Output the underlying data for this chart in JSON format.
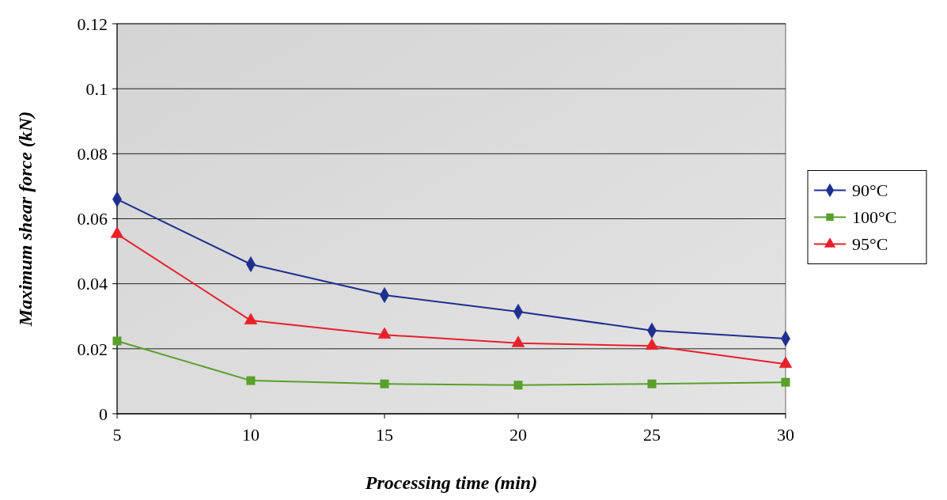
{
  "chart_data": {
    "type": "line",
    "xlabel": "Processing time (min)",
    "ylabel": "Maximum shear force (kN)",
    "x": [
      5,
      10,
      15,
      20,
      25,
      30
    ],
    "series": [
      {
        "name": "90°C",
        "color": "#1f2f8f",
        "marker": "diamond",
        "values": [
          0.066,
          0.046,
          0.0365,
          0.0314,
          0.0256,
          0.0231
        ]
      },
      {
        "name": "100°C",
        "color": "#5aa02c",
        "marker": "square",
        "values": [
          0.0224,
          0.0102,
          0.0092,
          0.0088,
          0.0092,
          0.0097
        ]
      },
      {
        "name": "95°C",
        "color": "#e8202a",
        "marker": "triangle",
        "values": [
          0.0553,
          0.0287,
          0.0243,
          0.0217,
          0.0209,
          0.0153
        ]
      }
    ],
    "xlim": [
      5,
      30
    ],
    "xticks": [
      5,
      10,
      15,
      20,
      25,
      30
    ],
    "ylim": [
      0,
      0.12
    ],
    "yticks": [
      0,
      0.02,
      0.04,
      0.06,
      0.08,
      {
        "value": 0.1,
        "label": "0.1"
      },
      0.12
    ],
    "grid": "y",
    "legend": "right",
    "line_style": "solid"
  }
}
